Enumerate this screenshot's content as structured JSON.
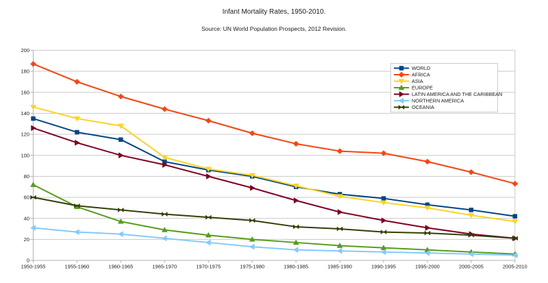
{
  "chart_data": {
    "type": "line",
    "title": "Infant Mortality Rates, 1950-2010.",
    "subtitle": "Source: UN World Population Prospects, 2012 Revision.",
    "xlabel": "",
    "ylabel": "",
    "ylim": [
      0,
      200
    ],
    "yticks": [
      0,
      20,
      40,
      60,
      80,
      100,
      120,
      140,
      160,
      180,
      200
    ],
    "grid": "horizontal",
    "legend_position": "top-right-inside",
    "categories": [
      "1950-1955",
      "1955-1960",
      "1960-1965",
      "1965-1970",
      "1970-1975",
      "1975-1980",
      "1980-1985",
      "1985-1990",
      "1990-1995",
      "1995-2000",
      "2000-2005",
      "2005-2010"
    ],
    "series": [
      {
        "name": "WORLD",
        "color": "#004586",
        "marker": "square",
        "values": [
          135,
          122,
          115,
          94,
          86,
          80,
          70,
          63,
          59,
          53,
          48,
          42
        ]
      },
      {
        "name": "AFRICA",
        "color": "#FF420E",
        "marker": "diamond",
        "values": [
          187,
          170,
          156,
          144,
          133,
          121,
          111,
          104,
          102,
          94,
          84,
          73
        ]
      },
      {
        "name": "ASIA",
        "color": "#FFD320",
        "marker": "arrow-down",
        "values": [
          146,
          135,
          128,
          98,
          87,
          81,
          71,
          61,
          55,
          50,
          43,
          37
        ]
      },
      {
        "name": "EUROPE",
        "color": "#579D1C",
        "marker": "arrow-up",
        "values": [
          72,
          51,
          37,
          29,
          24,
          20,
          17,
          14,
          12,
          10,
          8,
          6
        ]
      },
      {
        "name": "LATIN AMERICA AND THE CARIBBEAN",
        "color": "#7E0021",
        "marker": "arrow-right",
        "values": [
          126,
          112,
          100,
          91,
          80,
          69,
          57,
          46,
          38,
          31,
          25,
          21
        ]
      },
      {
        "name": "NORTHERN AMERICA",
        "color": "#83CAFF",
        "marker": "arrow-left",
        "values": [
          31,
          27,
          25,
          21,
          17,
          13,
          10,
          9,
          8,
          7,
          6,
          5
        ]
      },
      {
        "name": "OCEANIA",
        "color": "#314004",
        "marker": "bowtie",
        "values": [
          60,
          52,
          48,
          44,
          41,
          38,
          32,
          30,
          27,
          26,
          24,
          21
        ]
      }
    ]
  },
  "colors": {
    "background": "#ffffff",
    "gridline": "#c9c9c9",
    "axis": "#b0b0b0",
    "text": "#1a1a1a",
    "legend_border": "#cccccc",
    "legend_fill": "#ffffff"
  }
}
